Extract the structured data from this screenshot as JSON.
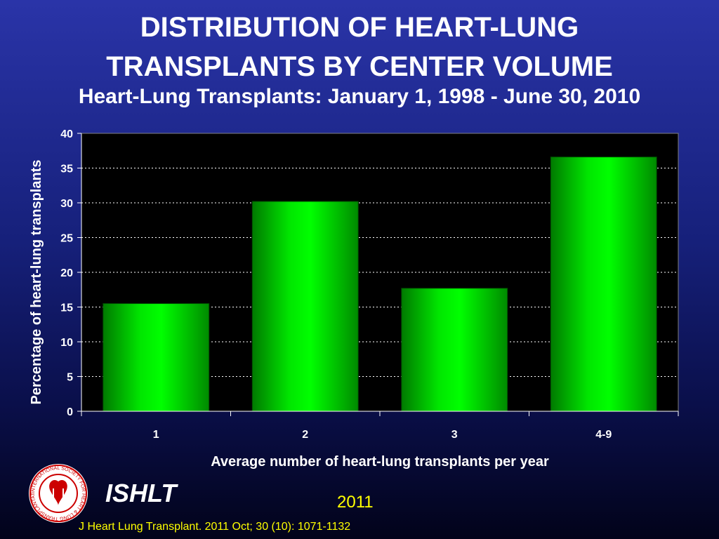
{
  "title_line1": "DISTRIBUTION OF HEART-LUNG",
  "title_line2": "TRANSPLANTS BY CENTER VOLUME",
  "subtitle": "Heart-Lung Transplants: January 1, 1998 - June 30, 2010",
  "chart_data": {
    "type": "bar",
    "categories": [
      "1",
      "2",
      "3",
      "4-9"
    ],
    "values": [
      15.5,
      30.2,
      17.7,
      36.6
    ],
    "xlabel": "Average number of heart-lung transplants per year",
    "ylabel": "Percentage of heart-lung transplants",
    "ylim": [
      0,
      40
    ],
    "yticks": [
      "0",
      "5",
      "10",
      "15",
      "20",
      "25",
      "30",
      "35",
      "40"
    ],
    "grid": true,
    "bar_color": "#00e600",
    "plot_background": "#000000"
  },
  "footer": {
    "logo_text": "ISHLT",
    "year": "2011",
    "citation": "J Heart Lung Transplant. 2011 Oct; 30 (10): 1071-1132"
  }
}
